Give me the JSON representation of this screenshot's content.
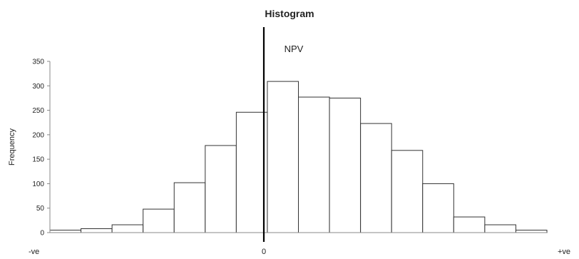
{
  "chart_data": {
    "type": "bar",
    "title": "Histogram",
    "annotation": "NPV",
    "xlabel": "",
    "ylabel": "Frequency",
    "ylim": [
      0,
      350
    ],
    "yticks": [
      0,
      50,
      100,
      150,
      200,
      250,
      300,
      350
    ],
    "x_labels": {
      "left": "-ve",
      "center": "0",
      "right": "+ve"
    },
    "series": [
      {
        "values": [
          5,
          8,
          16,
          48,
          102,
          178,
          246,
          309,
          277,
          275,
          223,
          168,
          100,
          32,
          16,
          5
        ]
      }
    ],
    "zero_line": true,
    "grid": false,
    "legend": "none"
  }
}
